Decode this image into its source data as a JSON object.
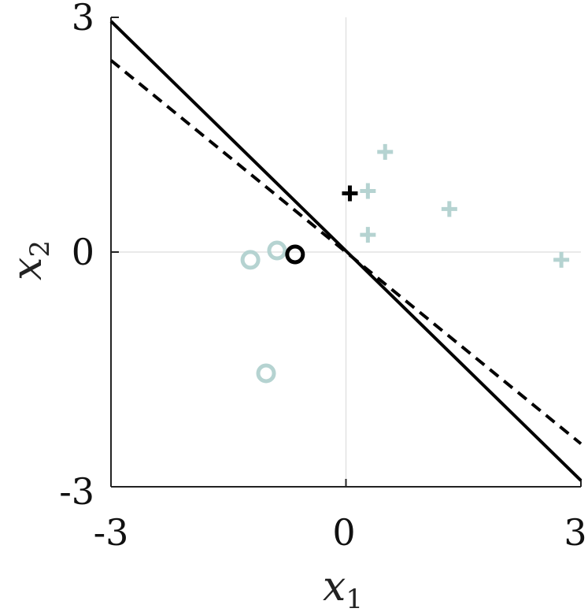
{
  "chart_data": {
    "type": "scatter",
    "xlim": [
      -3,
      3
    ],
    "ylim": [
      -3,
      3
    ],
    "xticks": [
      "-3",
      "0",
      "3"
    ],
    "yticks": [
      "-3",
      "0",
      "3"
    ],
    "xlabel": {
      "base": "x",
      "sub": "1"
    },
    "ylabel": {
      "base": "x",
      "sub": "2"
    },
    "grid": "lines at x=0 and y=0",
    "series": [
      {
        "marker": "plus",
        "color": "#b5d3d1",
        "points": [
          [
            0.5,
            1.28
          ],
          [
            0.28,
            0.78
          ],
          [
            0.28,
            0.22
          ],
          [
            1.32,
            0.55
          ],
          [
            2.75,
            -0.1
          ]
        ]
      },
      {
        "marker": "circle",
        "color": "#b5d3d1",
        "points": [
          [
            -1.22,
            -0.1
          ],
          [
            -0.88,
            0.02
          ],
          [
            -1.02,
            -1.55
          ]
        ]
      },
      {
        "marker": "plus",
        "color": "#000000",
        "points": [
          [
            0.05,
            0.75
          ]
        ]
      },
      {
        "marker": "circle",
        "color": "#000000",
        "points": [
          [
            -0.65,
            -0.03
          ]
        ]
      }
    ],
    "lines": [
      {
        "style": "solid",
        "color": "#000000",
        "from": [
          -3,
          2.95
        ],
        "to": [
          3,
          -2.92
        ]
      },
      {
        "style": "dashed",
        "color": "#000000",
        "from": [
          -3,
          2.45
        ],
        "to": [
          3,
          -2.45
        ]
      }
    ]
  }
}
